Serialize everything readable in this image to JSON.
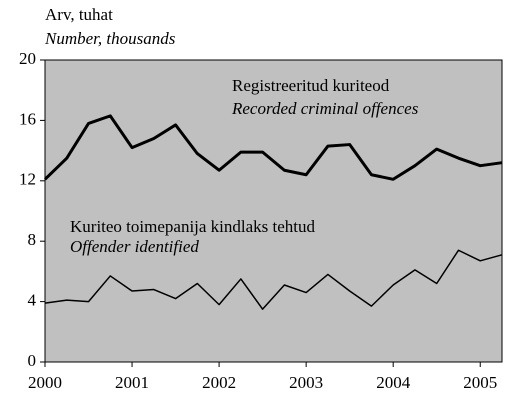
{
  "chart_data": {
    "type": "line",
    "y_label": "Arv, tuhat",
    "y_label_en": "Number, thousands",
    "x": [
      2000,
      2000.25,
      2000.5,
      2000.75,
      2001,
      2001.25,
      2001.5,
      2001.75,
      2002,
      2002.25,
      2002.5,
      2002.75,
      2003,
      2003.25,
      2003.5,
      2003.75,
      2004,
      2004.25,
      2004.5,
      2004.75,
      2005,
      2005.25
    ],
    "series": [
      {
        "name": "Registreeritud kuriteod",
        "name_en": "Recorded criminal offences",
        "color": "#000000",
        "width": 3,
        "values": [
          12.1,
          13.5,
          15.8,
          16.3,
          14.2,
          14.8,
          15.7,
          13.8,
          12.7,
          13.9,
          13.9,
          12.7,
          12.4,
          14.3,
          14.4,
          12.4,
          12.1,
          13.0,
          14.1,
          13.5,
          13.0,
          13.2
        ]
      },
      {
        "name": "Kuriteo toimepanija kindlaks tehtud",
        "name_en": "Offender identified",
        "color": "#000000",
        "width": 1.5,
        "values": [
          3.9,
          4.1,
          4.0,
          5.7,
          4.7,
          4.8,
          4.2,
          5.2,
          3.8,
          5.5,
          3.5,
          5.1,
          4.6,
          5.8,
          4.7,
          3.7,
          5.1,
          6.1,
          5.2,
          7.4,
          6.7,
          7.1
        ]
      }
    ],
    "xlim": [
      2000,
      2005.25
    ],
    "xticks": [
      2000,
      2001,
      2002,
      2003,
      2004,
      2005
    ],
    "ylim": [
      0,
      20
    ],
    "yticks": [
      0,
      4,
      8,
      12,
      16,
      20
    ],
    "background": "#c0c0c0"
  }
}
